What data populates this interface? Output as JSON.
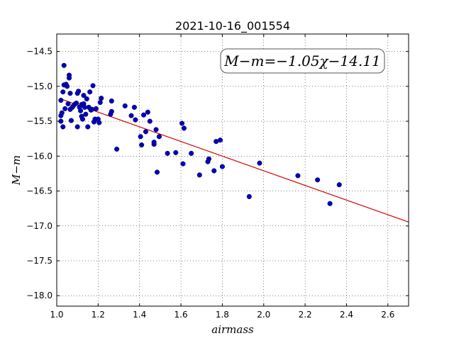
{
  "chart_data": {
    "type": "scatter",
    "title": "2021-10-16_001554",
    "xlabel": "airmass",
    "ylabel": "M−m",
    "xlim": [
      1.0,
      2.7
    ],
    "ylim": [
      -18.15,
      -14.25
    ],
    "xticks": [
      1.0,
      1.2,
      1.4,
      1.6,
      1.8,
      2.0,
      2.2,
      2.4,
      2.6
    ],
    "xtick_labels": [
      "1.0",
      "1.2",
      "1.4",
      "1.6",
      "1.8",
      "2.0",
      "2.2",
      "2.4",
      "2.6"
    ],
    "yticks": [
      -14.5,
      -15.0,
      -15.5,
      -16.0,
      -16.5,
      -17.0,
      -17.5,
      -18.0
    ],
    "ytick_labels": [
      "−14.5",
      "−15.0",
      "−15.5",
      "−16.0",
      "−16.5",
      "−17.0",
      "−17.5",
      "−18.0"
    ],
    "grid": true,
    "fit_label": "M−m=−1.05χ−14.11",
    "fit": {
      "slope": -1.05,
      "intercept": -14.11,
      "x_range": [
        1.02,
        2.7
      ]
    },
    "point_color": "#0000bf",
    "fit_color": "#d40000",
    "points": [
      [
        1.02,
        -15.5
      ],
      [
        1.02,
        -15.42
      ],
      [
        1.025,
        -15.38
      ],
      [
        1.03,
        -15.58
      ],
      [
        1.02,
        -15.2
      ],
      [
        1.03,
        -15.08
      ],
      [
        1.035,
        -14.98
      ],
      [
        1.035,
        -14.7
      ],
      [
        1.04,
        -15.32
      ],
      [
        1.045,
        -14.97
      ],
      [
        1.05,
        -15.0
      ],
      [
        1.055,
        -15.25
      ],
      [
        1.06,
        -14.88
      ],
      [
        1.06,
        -14.84
      ],
      [
        1.065,
        -15.1
      ],
      [
        1.065,
        -15.33
      ],
      [
        1.07,
        -15.49
      ],
      [
        1.075,
        -15.3
      ],
      [
        1.08,
        -15.28
      ],
      [
        1.09,
        -15.25
      ],
      [
        1.095,
        -15.24
      ],
      [
        1.1,
        -15.58
      ],
      [
        1.1,
        -15.1
      ],
      [
        1.105,
        -15.07
      ],
      [
        1.11,
        -15.3
      ],
      [
        1.115,
        -15.35
      ],
      [
        1.12,
        -15.26
      ],
      [
        1.12,
        -15.43
      ],
      [
        1.125,
        -15.47
      ],
      [
        1.13,
        -15.13
      ],
      [
        1.13,
        -15.25
      ],
      [
        1.135,
        -15.3
      ],
      [
        1.14,
        -15.4
      ],
      [
        1.145,
        -15.18
      ],
      [
        1.15,
        -15.58
      ],
      [
        1.155,
        -15.3
      ],
      [
        1.16,
        -15.08
      ],
      [
        1.165,
        -15.34
      ],
      [
        1.17,
        -15.33
      ],
      [
        1.175,
        -14.99
      ],
      [
        1.18,
        -15.51
      ],
      [
        1.185,
        -15.47
      ],
      [
        1.19,
        -15.32
      ],
      [
        1.2,
        -15.47
      ],
      [
        1.205,
        -15.52
      ],
      [
        1.21,
        -15.23
      ],
      [
        1.215,
        -15.17
      ],
      [
        1.26,
        -15.4
      ],
      [
        1.265,
        -15.36
      ],
      [
        1.265,
        -15.21
      ],
      [
        1.29,
        -15.9
      ],
      [
        1.33,
        -15.28
      ],
      [
        1.36,
        -15.42
      ],
      [
        1.375,
        -15.3
      ],
      [
        1.38,
        -15.48
      ],
      [
        1.405,
        -15.72
      ],
      [
        1.41,
        -15.84
      ],
      [
        1.42,
        -15.41
      ],
      [
        1.43,
        -15.65
      ],
      [
        1.44,
        -15.37
      ],
      [
        1.45,
        -15.5
      ],
      [
        1.47,
        -15.83
      ],
      [
        1.47,
        -15.8
      ],
      [
        1.48,
        -15.62
      ],
      [
        1.485,
        -16.23
      ],
      [
        1.495,
        -15.72
      ],
      [
        1.535,
        -15.96
      ],
      [
        1.575,
        -15.95
      ],
      [
        1.605,
        -15.53
      ],
      [
        1.61,
        -16.11
      ],
      [
        1.615,
        -15.6
      ],
      [
        1.65,
        -15.96
      ],
      [
        1.69,
        -16.27
      ],
      [
        1.73,
        -16.08
      ],
      [
        1.735,
        -16.04
      ],
      [
        1.76,
        -16.21
      ],
      [
        1.77,
        -15.79
      ],
      [
        1.79,
        -15.77
      ],
      [
        1.8,
        -16.15
      ],
      [
        1.93,
        -16.58
      ],
      [
        1.98,
        -16.1
      ],
      [
        2.165,
        -16.28
      ],
      [
        2.26,
        -16.34
      ],
      [
        2.32,
        -16.68
      ],
      [
        2.365,
        -16.41
      ]
    ]
  }
}
